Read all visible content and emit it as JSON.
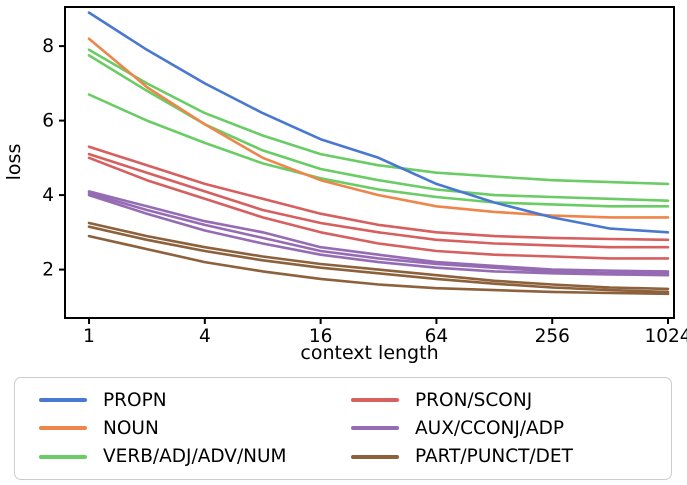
{
  "chart_data": {
    "type": "line",
    "title": "",
    "xlabel": "context length",
    "ylabel": "loss",
    "x_scale": "log",
    "xlim": [
      0.75,
      1100
    ],
    "ylim": [
      0.7,
      9.05
    ],
    "x_ticks": [
      1,
      4,
      16,
      64,
      256,
      1024
    ],
    "y_ticks": [
      2,
      4,
      6,
      8
    ],
    "grid": false,
    "legend_position": "below",
    "x": [
      1,
      2,
      4,
      8,
      16,
      32,
      64,
      128,
      256,
      512,
      1024
    ],
    "legend": [
      {
        "label": "PROPN",
        "color": "#4878D0"
      },
      {
        "label": "NOUN",
        "color": "#EE854A"
      },
      {
        "label": "VERB/ADJ/ADV/NUM",
        "color": "#6ACC64"
      },
      {
        "label": "PRON/SCONJ",
        "color": "#D65F5F"
      },
      {
        "label": "AUX/CCONJ/ADP",
        "color": "#956CB4"
      },
      {
        "label": "PART/PUNCT/DET",
        "color": "#8C613C"
      }
    ],
    "series": [
      {
        "group": "PROPN",
        "line": 1,
        "color": "#4878D0",
        "values": [
          8.9,
          7.9,
          7.0,
          6.2,
          5.5,
          5.0,
          4.3,
          3.8,
          3.4,
          3.1,
          3.0
        ]
      },
      {
        "group": "NOUN",
        "line": 1,
        "color": "#EE854A",
        "values": [
          8.2,
          6.9,
          5.9,
          5.0,
          4.4,
          4.0,
          3.7,
          3.55,
          3.45,
          3.4,
          3.4
        ]
      },
      {
        "group": "VERB/ADJ/ADV/NUM",
        "line": 1,
        "color": "#6ACC64",
        "values": [
          7.9,
          7.0,
          6.2,
          5.6,
          5.1,
          4.8,
          4.6,
          4.5,
          4.4,
          4.35,
          4.3
        ]
      },
      {
        "group": "VERB/ADJ/ADV/NUM",
        "line": 2,
        "color": "#6ACC64",
        "values": [
          7.75,
          6.8,
          5.9,
          5.2,
          4.7,
          4.4,
          4.15,
          4.0,
          3.95,
          3.9,
          3.85
        ]
      },
      {
        "group": "VERB/ADJ/ADV/NUM",
        "line": 3,
        "color": "#6ACC64",
        "values": [
          6.7,
          6.0,
          5.4,
          4.85,
          4.45,
          4.15,
          3.95,
          3.8,
          3.75,
          3.7,
          3.7
        ]
      },
      {
        "group": "PRON/SCONJ",
        "line": 1,
        "color": "#D65F5F",
        "values": [
          5.3,
          4.8,
          4.3,
          3.9,
          3.5,
          3.2,
          3.0,
          2.9,
          2.85,
          2.82,
          2.8
        ]
      },
      {
        "group": "PRON/SCONJ",
        "line": 2,
        "color": "#D65F5F",
        "values": [
          5.1,
          4.6,
          4.1,
          3.6,
          3.25,
          3.0,
          2.8,
          2.7,
          2.65,
          2.6,
          2.6
        ]
      },
      {
        "group": "PRON/SCONJ",
        "line": 3,
        "color": "#D65F5F",
        "values": [
          5.0,
          4.4,
          3.9,
          3.4,
          3.0,
          2.7,
          2.5,
          2.4,
          2.35,
          2.3,
          2.3
        ]
      },
      {
        "group": "AUX/CCONJ/ADP",
        "line": 1,
        "color": "#956CB4",
        "values": [
          4.1,
          3.7,
          3.3,
          3.0,
          2.6,
          2.4,
          2.2,
          2.1,
          2.0,
          1.97,
          1.95
        ]
      },
      {
        "group": "AUX/CCONJ/ADP",
        "line": 2,
        "color": "#956CB4",
        "values": [
          4.05,
          3.6,
          3.2,
          2.85,
          2.5,
          2.3,
          2.15,
          2.05,
          1.95,
          1.9,
          1.9
        ]
      },
      {
        "group": "AUX/CCONJ/ADP",
        "line": 3,
        "color": "#956CB4",
        "values": [
          4.0,
          3.5,
          3.05,
          2.7,
          2.4,
          2.2,
          2.05,
          1.95,
          1.9,
          1.87,
          1.85
        ]
      },
      {
        "group": "PART/PUNCT/DET",
        "line": 1,
        "color": "#8C613C",
        "values": [
          3.25,
          2.9,
          2.6,
          2.35,
          2.15,
          2.0,
          1.85,
          1.7,
          1.6,
          1.52,
          1.48
        ]
      },
      {
        "group": "PART/PUNCT/DET",
        "line": 2,
        "color": "#8C613C",
        "values": [
          3.15,
          2.8,
          2.5,
          2.25,
          2.05,
          1.9,
          1.75,
          1.62,
          1.52,
          1.45,
          1.4
        ]
      },
      {
        "group": "PART/PUNCT/DET",
        "line": 3,
        "color": "#8C613C",
        "values": [
          2.9,
          2.55,
          2.2,
          1.95,
          1.75,
          1.6,
          1.5,
          1.45,
          1.4,
          1.37,
          1.35
        ]
      }
    ]
  }
}
